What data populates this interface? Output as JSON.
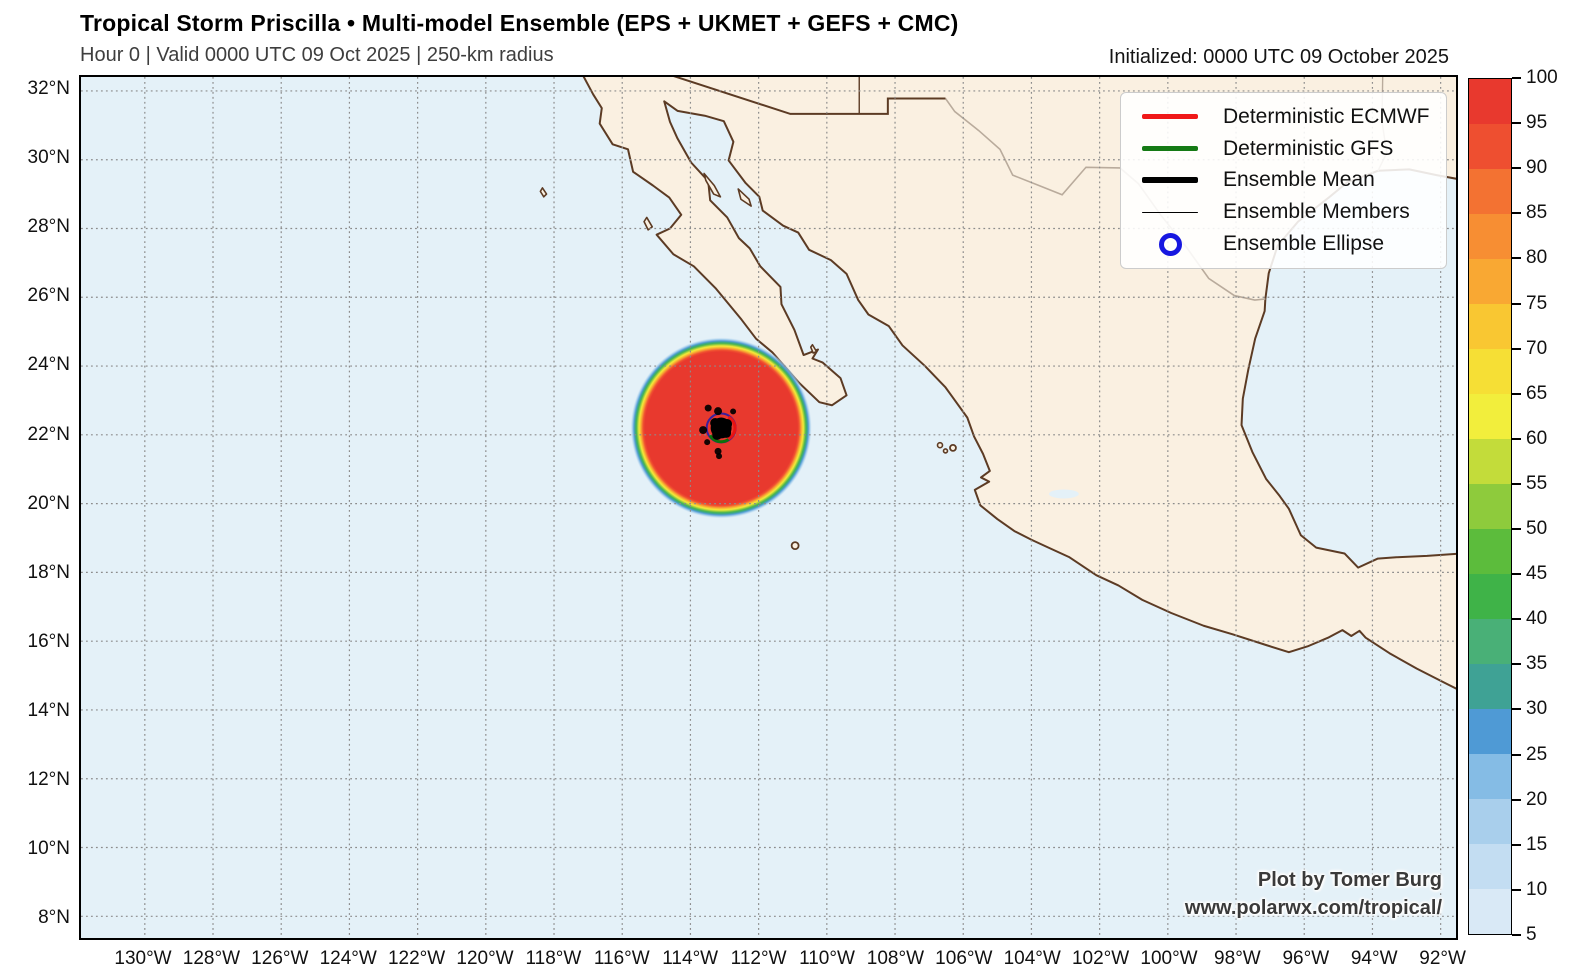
{
  "header": {
    "title": "Tropical Storm Priscilla • Multi-model Ensemble (EPS + UKMET + GEFS + CMC)",
    "subtitle": "Hour 0 | Valid 0000 UTC 09 Oct 2025 | 250-km radius",
    "initialized": "Initialized: 0000 UTC 09 October 2025"
  },
  "credit": {
    "line1": "Plot by Tomer Burg",
    "line2": "www.polarwx.com/tropical/"
  },
  "legend": {
    "items": [
      {
        "label": "Deterministic ECMWF",
        "swatch": "line",
        "color": "#f01818",
        "thickness": 5
      },
      {
        "label": "Deterministic GFS",
        "swatch": "line",
        "color": "#157a15",
        "thickness": 5
      },
      {
        "label": "Ensemble Mean",
        "swatch": "line",
        "color": "#000000",
        "thickness": 6
      },
      {
        "label": "Ensemble Members",
        "swatch": "line",
        "color": "#000000",
        "thickness": 1.5
      },
      {
        "label": "Ensemble Ellipse",
        "swatch": "ring",
        "color": "#1717e0",
        "thickness": 5
      }
    ]
  },
  "colorbar": {
    "min": 5,
    "max": 100,
    "tick_step": 5,
    "ticks": [
      100,
      95,
      90,
      85,
      80,
      75,
      70,
      65,
      60,
      55,
      50,
      45,
      40,
      35,
      30,
      25,
      20,
      15,
      10,
      5
    ],
    "band_colors_low_to_high": [
      "#d9e9f6",
      "#c3ddf2",
      "#a9cfec",
      "#85bce5",
      "#4f9ad5",
      "#3fa295",
      "#49b077",
      "#3fb348",
      "#5cbc3c",
      "#8ecb3c",
      "#c3dc3a",
      "#f2ee3c",
      "#f6df35",
      "#f9c732",
      "#f9a833",
      "#f78e33",
      "#f37232",
      "#ee4f30",
      "#e8392e"
    ]
  },
  "axes": {
    "x_tick_labels": [
      "130°W",
      "128°W",
      "126°W",
      "124°W",
      "122°W",
      "120°W",
      "118°W",
      "116°W",
      "114°W",
      "112°W",
      "110°W",
      "108°W",
      "106°W",
      "104°W",
      "102°W",
      "100°W",
      "98°W",
      "96°W",
      "94°W",
      "92°W"
    ],
    "x_tick_lons": [
      130,
      128,
      126,
      124,
      122,
      120,
      118,
      116,
      114,
      112,
      110,
      108,
      106,
      104,
      102,
      100,
      98,
      96,
      94,
      92
    ],
    "y_tick_labels": [
      "32°N",
      "30°N",
      "28°N",
      "26°N",
      "24°N",
      "22°N",
      "20°N",
      "18°N",
      "16°N",
      "14°N",
      "12°N",
      "10°N",
      "8°N"
    ],
    "y_tick_lats": [
      32,
      30,
      28,
      26,
      24,
      22,
      20,
      18,
      16,
      14,
      12,
      10,
      8
    ]
  },
  "chart_data": {
    "type": "heatmap",
    "subtype": "tropical-cyclone-ensemble-probability-map",
    "title": "Tropical Storm Priscilla • Multi-model Ensemble (EPS + UKMET + GEFS + CMC)",
    "subtitle": "Hour 0 | Valid 0000 UTC 09 Oct 2025 | 250-km radius",
    "initialized": "0000 UTC 09 October 2025",
    "lon_range_deg_w": [
      131.8,
      91.5
    ],
    "lat_range_deg_n": [
      7.4,
      32.4
    ],
    "grid_step_deg": 2,
    "colorbar_range_pct": [
      5,
      100
    ],
    "storm": {
      "name": "Priscilla",
      "forecast_hour": 0,
      "radius_km": 250,
      "center_lon_w": 113.1,
      "center_lat_n": 22.2,
      "core_probability_pct": 100,
      "members_lon_lat": [
        [
          113.19,
          22.69
        ],
        [
          112.75,
          22.68
        ],
        [
          113.48,
          22.78
        ],
        [
          113.63,
          22.14
        ],
        [
          113.51,
          21.79
        ],
        [
          113.19,
          21.52
        ],
        [
          113.16,
          21.38
        ]
      ]
    },
    "legend_entries": [
      "Deterministic ECMWF",
      "Deterministic GFS",
      "Ensemble Mean",
      "Ensemble Members",
      "Ensemble Ellipse"
    ],
    "legend_position": "upper right",
    "grid": "dotted"
  }
}
